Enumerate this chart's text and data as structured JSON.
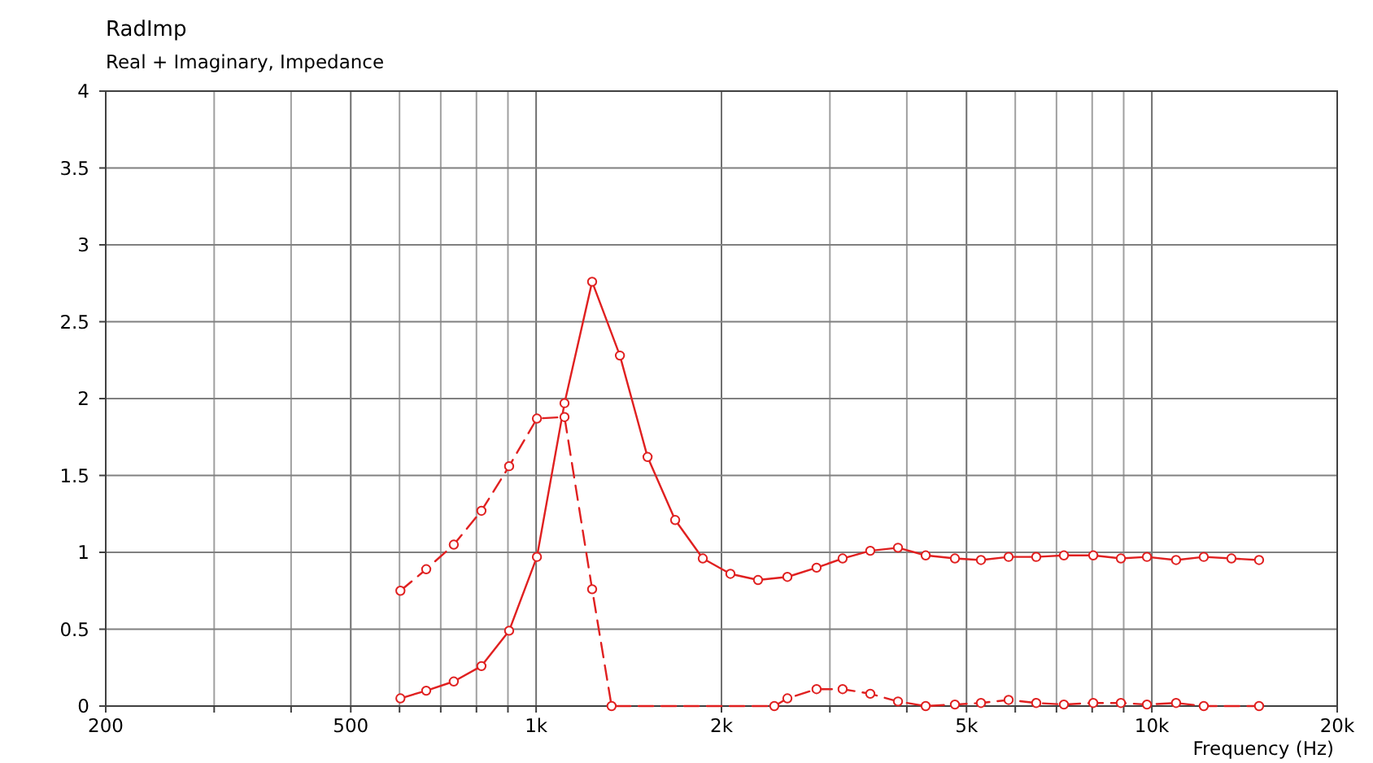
{
  "chart_data": {
    "type": "line",
    "title": "RadImp",
    "subtitle": "Real + Imaginary, Impedance",
    "xlabel": "Frequency  (Hz)",
    "log": "x",
    "grid": true,
    "marker": "circle",
    "xlim": [
      200,
      20000
    ],
    "xticks": [
      200,
      {
        "value": 300,
        "label": null
      },
      {
        "value": 400,
        "label": null
      },
      500,
      {
        "value": 600,
        "label": null
      },
      {
        "value": 700,
        "label": null
      },
      {
        "value": 800,
        "label": null
      },
      {
        "value": 900,
        "label": null
      },
      {
        "value": 1000,
        "label": "1k"
      },
      {
        "value": 2000,
        "label": "2k"
      },
      {
        "value": 3000,
        "label": null
      },
      {
        "value": 4000,
        "label": null
      },
      {
        "value": 5000,
        "label": "5k"
      },
      {
        "value": 6000,
        "label": null
      },
      {
        "value": 7000,
        "label": null
      },
      {
        "value": 8000,
        "label": null
      },
      {
        "value": 9000,
        "label": null
      },
      {
        "value": 10000,
        "label": "10k"
      },
      {
        "value": 20000,
        "label": "20k"
      }
    ],
    "ylim": [
      0,
      4
    ],
    "yticks": [
      0,
      0.5,
      1,
      1.5,
      2,
      2.5,
      3,
      3.5,
      4
    ],
    "series": [
      {
        "color": "#e02020",
        "line_style": "solid",
        "x": [
          602,
          663,
          735,
          815,
          904,
          1003,
          1112,
          1233,
          1368,
          1517,
          1682,
          1865,
          2068,
          2293,
          2559,
          2854,
          3146,
          3489,
          3870,
          4292,
          4788,
          5278,
          5853,
          6490,
          7197,
          8032,
          8906,
          9818,
          10948,
          12142,
          13466,
          14932
        ],
        "values": [
          0.05,
          0.1,
          0.16,
          0.26,
          0.49,
          0.97,
          1.97,
          2.76,
          2.28,
          1.62,
          1.21,
          0.96,
          0.86,
          0.82,
          0.84,
          0.9,
          0.96,
          1.01,
          1.03,
          0.98,
          0.96,
          0.95,
          0.97,
          0.97,
          0.98,
          0.98,
          0.96,
          0.97,
          0.95,
          0.97,
          0.96,
          0.95
        ]
      },
      {
        "color": "#e02020",
        "line_style": "dashed",
        "x": [
          602,
          663,
          735,
          815,
          904,
          1003,
          1112,
          1233,
          1326,
          2437,
          2559,
          2854,
          3146,
          3489,
          3870,
          4292,
          4788,
          5278,
          5853,
          6490,
          7197,
          8032,
          8906,
          9818,
          10948,
          12142,
          14932
        ],
        "values": [
          0.75,
          0.89,
          1.05,
          1.27,
          1.56,
          1.87,
          1.88,
          0.76,
          0,
          0,
          0.05,
          0.11,
          0.11,
          0.08,
          0.03,
          0,
          0.01,
          0.02,
          0.04,
          0.02,
          0.01,
          0.02,
          0.02,
          0.01,
          0.02,
          0,
          0
        ]
      }
    ]
  }
}
